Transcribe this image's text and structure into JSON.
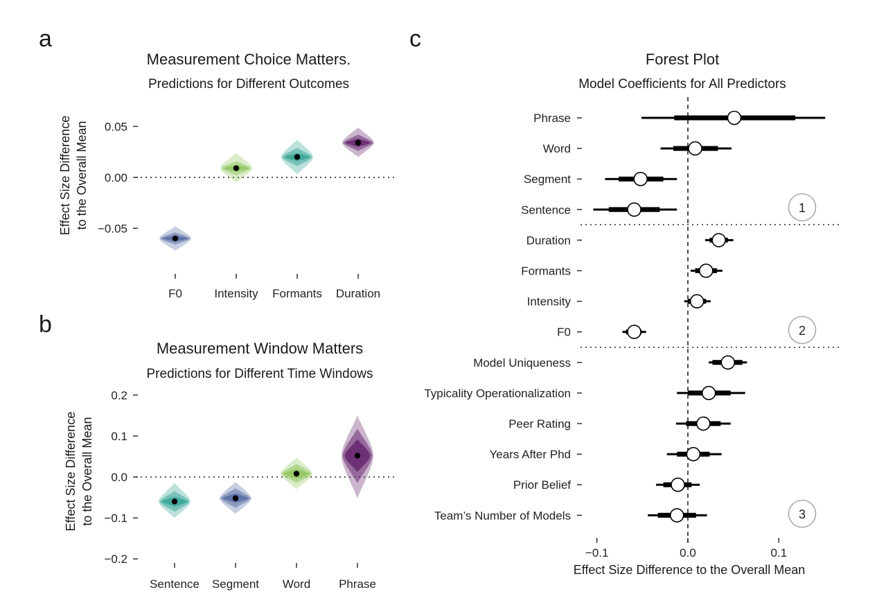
{
  "chart_data": [
    {
      "panel": "a",
      "type": "violin-interval",
      "title": "Measurement Choice Matters.",
      "subtitle": "Predictions for Different Outcomes",
      "ylabel": [
        "Effect Size Difference",
        "to the Overall Mean"
      ],
      "ylim": [
        -0.075,
        0.07
      ],
      "yticks": [
        {
          "v": 0.05,
          "label": "0.05"
        },
        {
          "v": 0.0,
          "label": "0.00"
        },
        {
          "v": -0.05,
          "label": "−0.05"
        }
      ],
      "reference_line": 0,
      "categories": [
        "F0",
        "Intensity",
        "Formants",
        "Duration"
      ],
      "points": [
        {
          "category": "F0",
          "mean": -0.06,
          "inner": [
            -0.063,
            -0.057
          ],
          "mid": [
            -0.066,
            -0.054
          ],
          "outer": [
            -0.072,
            -0.048
          ],
          "color": "#5e73a8"
        },
        {
          "category": "Intensity",
          "mean": 0.009,
          "inner": [
            0.006,
            0.012
          ],
          "mid": [
            0.002,
            0.016
          ],
          "outer": [
            -0.005,
            0.024
          ],
          "color": "#95c864"
        },
        {
          "category": "Formants",
          "mean": 0.02,
          "inner": [
            0.016,
            0.024
          ],
          "mid": [
            0.011,
            0.029
          ],
          "outer": [
            0.003,
            0.037
          ],
          "color": "#3fa99a"
        },
        {
          "category": "Duration",
          "mean": 0.034,
          "inner": [
            0.03,
            0.038
          ],
          "mid": [
            0.026,
            0.042
          ],
          "outer": [
            0.02,
            0.049
          ],
          "color": "#6b2d73"
        }
      ]
    },
    {
      "panel": "b",
      "type": "violin-interval",
      "title": "Measurement Window Matters",
      "subtitle": "Predictions for Different Time Windows",
      "ylabel": [
        "Effect Size Difference",
        "to the Overall Mean"
      ],
      "ylim": [
        -0.22,
        0.22
      ],
      "yticks": [
        {
          "v": 0.2,
          "label": "0.2"
        },
        {
          "v": 0.1,
          "label": "0.1"
        },
        {
          "v": 0.0,
          "label": "0.0"
        },
        {
          "v": -0.1,
          "label": "−0.1"
        },
        {
          "v": -0.2,
          "label": "−0.2"
        }
      ],
      "reference_line": 0,
      "categories": [
        "Sentence",
        "Segment",
        "Word",
        "Phrase"
      ],
      "points": [
        {
          "category": "Sentence",
          "mean": -0.06,
          "inner": [
            -0.072,
            -0.048
          ],
          "mid": [
            -0.085,
            -0.035
          ],
          "outer": [
            -0.1,
            -0.015
          ],
          "color": "#3fa99a"
        },
        {
          "category": "Segment",
          "mean": -0.052,
          "inner": [
            -0.063,
            -0.04
          ],
          "mid": [
            -0.075,
            -0.028
          ],
          "outer": [
            -0.09,
            -0.012
          ],
          "color": "#5e73a8"
        },
        {
          "category": "Word",
          "mean": 0.008,
          "inner": [
            -0.004,
            0.02
          ],
          "mid": [
            -0.015,
            0.032
          ],
          "outer": [
            -0.03,
            0.047
          ],
          "color": "#95c864"
        },
        {
          "category": "Phrase",
          "mean": 0.052,
          "inner": [
            0.012,
            0.092
          ],
          "mid": [
            -0.015,
            0.118
          ],
          "outer": [
            -0.052,
            0.15
          ],
          "color": "#6b2d73"
        }
      ]
    },
    {
      "panel": "c",
      "type": "forest",
      "title": "Forest Plot",
      "subtitle": "Model Coefficients for All Predictors",
      "xlabel": "Effect Size Difference to the Overall Mean",
      "xlim": [
        -0.125,
        0.165
      ],
      "xticks": [
        {
          "v": -0.1,
          "label": "−0.1"
        },
        {
          "v": 0.0,
          "label": "0.0"
        },
        {
          "v": 0.1,
          "label": "0.1"
        }
      ],
      "reference_line": 0,
      "groups": [
        "1",
        "2",
        "3"
      ],
      "rows": [
        {
          "label": "Phrase",
          "group": 1,
          "est": 0.051,
          "inner": [
            -0.015,
            0.118
          ],
          "outer": [
            -0.051,
            0.151
          ]
        },
        {
          "label": "Word",
          "group": 1,
          "est": 0.008,
          "inner": [
            -0.016,
            0.033
          ],
          "outer": [
            -0.03,
            0.048
          ]
        },
        {
          "label": "Segment",
          "group": 1,
          "est": -0.052,
          "inner": [
            -0.076,
            -0.027
          ],
          "outer": [
            -0.091,
            -0.012
          ]
        },
        {
          "label": "Sentence",
          "group": 1,
          "est": -0.059,
          "inner": [
            -0.087,
            -0.031
          ],
          "outer": [
            -0.104,
            -0.012
          ]
        },
        {
          "label": "Duration",
          "group": 2,
          "est": 0.034,
          "inner": [
            0.024,
            0.044
          ],
          "outer": [
            0.019,
            0.05
          ]
        },
        {
          "label": "Formants",
          "group": 2,
          "est": 0.02,
          "inner": [
            0.008,
            0.032
          ],
          "outer": [
            0.003,
            0.038
          ]
        },
        {
          "label": "Intensity",
          "group": 2,
          "est": 0.01,
          "inner": [
            0.0,
            0.02
          ],
          "outer": [
            -0.004,
            0.025
          ]
        },
        {
          "label": "F0",
          "group": 2,
          "est": -0.059,
          "inner": [
            -0.068,
            -0.051
          ],
          "outer": [
            -0.072,
            -0.046
          ]
        },
        {
          "label": "Model Uniqueness",
          "group": 3,
          "est": 0.044,
          "inner": [
            0.027,
            0.06
          ],
          "outer": [
            0.023,
            0.065
          ]
        },
        {
          "label": "Typicality Operationalization",
          "group": 3,
          "est": 0.023,
          "inner": [
            0.0,
            0.047
          ],
          "outer": [
            -0.012,
            0.063
          ]
        },
        {
          "label": "Peer Rating",
          "group": 3,
          "est": 0.017,
          "inner": [
            -0.002,
            0.036
          ],
          "outer": [
            -0.013,
            0.047
          ]
        },
        {
          "label": "Years After Phd",
          "group": 3,
          "est": 0.006,
          "inner": [
            -0.012,
            0.024
          ],
          "outer": [
            -0.023,
            0.037
          ]
        },
        {
          "label": "Prior Belief ",
          "group": 3,
          "est": -0.011,
          "inner": [
            -0.027,
            0.004
          ],
          "outer": [
            -0.035,
            0.013
          ]
        },
        {
          "label": "Team’s Number of Models",
          "group": 3,
          "est": -0.012,
          "inner": [
            -0.033,
            0.009
          ],
          "outer": [
            -0.044,
            0.021
          ]
        }
      ]
    }
  ]
}
